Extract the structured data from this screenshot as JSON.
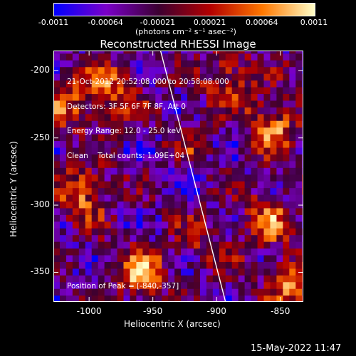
{
  "colorbar": {
    "tick_labels": [
      "-0.0011",
      "-0.00064",
      "-0.00021",
      "0.00021",
      "0.00064",
      "0.0011"
    ],
    "unit_label": "(photons cm⁻² s⁻¹ asec⁻²)",
    "colors": [
      "#0000ff",
      "#7a00c8",
      "#3c0032",
      "#b40000",
      "#ff7800",
      "#ffffc8"
    ]
  },
  "title": "Reconstructed RHESSI Image",
  "info_lines": [
    "21-Oct-2012 20:52:08.000 to 20:58:08.000",
    "Detectors: 3F 5F 6F 7F 8F, Att 0",
    "Energy Range: 12.0 - 25.0 keV",
    "Clean    Total counts: 1.09E+04"
  ],
  "peak_label": "Position of Peak = [-840,-357]",
  "footer_timestamp": "15-May-2022 11:47",
  "chart_data": {
    "type": "heatmap",
    "title": "Reconstructed RHESSI Image",
    "xlabel": "Heliocentric X (arcsec)",
    "ylabel": "Heliocentric Y (arcsec)",
    "xlim": [
      -1028,
      -832
    ],
    "ylim": [
      -372,
      -185
    ],
    "x_ticks": [
      -1000,
      -950,
      -900,
      -850
    ],
    "y_ticks": [
      -350,
      -300,
      -250,
      -200
    ],
    "x_tick_labels": [
      "-1000",
      "-950",
      "-900",
      "-850"
    ],
    "y_tick_labels": [
      "-350",
      "-300",
      "-250",
      "-200"
    ],
    "colorbar_range": [
      -0.0011,
      0.0011
    ],
    "limb_line": [
      [
        -944,
        -185
      ],
      [
        -893,
        -372
      ]
    ],
    "peak_position": [
      -840,
      -357
    ],
    "hotspots": [
      {
        "x": -1005,
        "y": -290,
        "value": 0.001
      },
      {
        "x": -960,
        "y": -350,
        "value": 0.0011
      },
      {
        "x": -980,
        "y": -215,
        "value": 0.0009
      },
      {
        "x": -1015,
        "y": -225,
        "value": 0.0008
      },
      {
        "x": -855,
        "y": -240,
        "value": 0.001
      },
      {
        "x": -890,
        "y": -205,
        "value": 0.0009
      },
      {
        "x": -840,
        "y": -357,
        "value": 0.0011
      },
      {
        "x": -860,
        "y": -310,
        "value": 0.0009
      },
      {
        "x": -910,
        "y": -330,
        "value": 0.0005
      },
      {
        "x": -920,
        "y": -250,
        "value": 0.0004
      }
    ]
  }
}
